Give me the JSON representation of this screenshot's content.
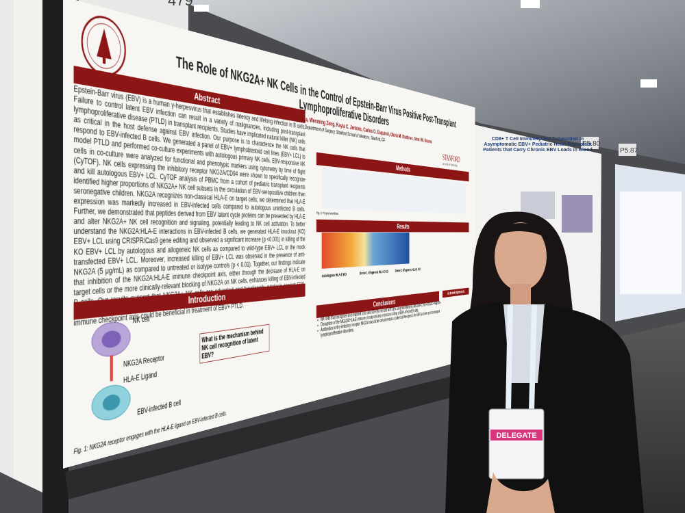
{
  "poster": {
    "title": "The Role of NKG2A+ NK Cells in the Control of Epstein-Barr Virus Positive Post-Transplant Lymphoproliferative Disorders",
    "authors": "Cecilia Ledezma-Soto, Josselyn X. Pena, Wenming Zeng, Kayla C. Jenkins, Carlos O. Esquivel, Olivia M. Martinez, Sheri M. Krams",
    "affiliation": "Department of Surgery, Stanford School of Medicine, Stanford, CA",
    "logo": "STANFORD",
    "logo_sub": "SCHOOL OF MEDICINE",
    "sections": {
      "abstract": "Abstract",
      "introduction": "Introduction",
      "methods": "Methods",
      "results": "Results",
      "conclusions": "Conclusions",
      "acknowledgements": "Acknowledgements"
    },
    "abstract_text": "Epstein-Barr virus (EBV) is a human γ-herpesvirus that establishes latency and lifelong infection in B cells. Failure to control latent EBV infection can result in a variety of malignancies, including post-transplant lymphoproliferative disease (PTLD) in transplant recipients. Studies have implicated natural killer (NK) cells as critical in the host defense against EBV infection. Our purpose is to characterize the NK cells that respond to EBV-infected B cells. We generated a panel of EBV+ lymphoblastoid cell lines (EBV+ LCL) to model PTLD and performed co-culture experiments with autologous primary NK cells. EBV-responsive NK cells in co-culture were analyzed for functional and phenotypic markers using cytometry by time of flight (CyTOF). NK cells expressing the inhibitory receptor NKG2A/CD94 were shown to specifically recognize and kill autologous EBV+ LCL. CyTOF analysis of PBMC from a cohort of pediatric transplant recipients identified higher proportions of NKG2A+ NK cell subsets in the circulation of EBV-seropositive children than seronegative children. NKG2A recognizes non-classical HLA-E on target cells; we determined that HLA-E expression was markedly increased in EBV-infected cells compared to autologous uninfected B cells. Further, we demonstrated that peptides derived from EBV latent cycle proteins can be presented by HLA-E and alter NKG2A+ NK cell recognition and signaling, potentially leading to NK cell activation. To better understand the NKG2A:HLA-E interactions in EBV-infected B cells, we generated HLA-E knockout (KO) EBV+ LCL using CRISPR/Cas9 gene editing and observed a significant increase (p <0.001) in killing of the KO EBV+ LCL by autologous and allogeneic NK cells as compared to wild-type EBV+ LCL or the mock transfected EBV+ LCL. Moreover, increased killing of EBV+ LCL was observed in the presence of anti-NKG2A (5 μg/mL) as compared to untreated or isotype controls (p < 0.01). Together, our findings indicate that inhibition of the NKG2A:HLA-E immune checkpoint axis, either through the decrease of HLA-E on target cells or the more clinically-relevant blocking of NKG2A on NK cells, enhances killing of EBV-infected B cells. Our results support that NKG2A+ NK cells are educated and functionally cytotoxic against EBV-infected B cells and suggest that therapeutics, such as Monalizumab, that target the NKG2A:HLA-E immune checkpoint axis could be beneficial in treatment of EBV+ PTLD.",
    "intro_question": "What is the mechanism behind NK cell recognition of latent EBV?",
    "diagram_labels": [
      "NK cell",
      "NKG2A Receptor",
      "HLA-E Ligand",
      "EBV-infected B cell"
    ],
    "figure1_caption": "Fig. 1: NKG2A receptor engages with the HLA-E ligand on EBV-infected B cells.",
    "figure2_caption": "Fig. 2: Project workflow.",
    "result_panels": [
      "Autologous HLA-E KO",
      "Donor 1 Allogeneic HLA-E KO",
      "Donor 2 Allogeneic HLA-E KO"
    ],
    "conclusions": [
      "NK cells that recognize and respond to B cells latently infected with EBV are predominantly NKG2A+CD56+NKG2D+NKp30+.",
      "Disruption of the NKG2A:HLA-E immune checkpoint axis enhances killing of EBV-infected B cells.",
      "Antibodies to the inhibitory receptor NKG2A should be considered as a potential therapeutic for EBV-positive post-transplant lymphoproliferative disorders."
    ]
  },
  "neighbor_poster": {
    "title": "CD8+ T Cell Immunity and Exhaustion in Asymptomatic EBV+ Pediatric Heart Transplant Patients that Carry Chronic EBV Loads in Blood"
  },
  "board_numbers": [
    "479",
    "P5.80",
    "P5.87"
  ],
  "badge": {
    "label": "DELEGATE"
  }
}
